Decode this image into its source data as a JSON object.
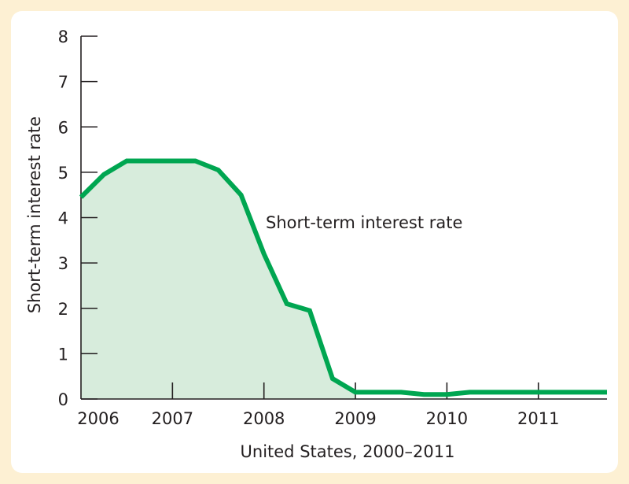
{
  "chart_data": {
    "type": "area",
    "title": "",
    "xlabel": "United States, 2000–2011",
    "ylabel": "Short-term interest rate",
    "annotation": "Short-term interest rate",
    "xlim": [
      2006.0,
      2011.75
    ],
    "ylim": [
      0,
      8
    ],
    "yticks": [
      "0",
      "1",
      "2",
      "3",
      "4",
      "5",
      "6",
      "7",
      "8"
    ],
    "xticks": [
      {
        "value": 2006,
        "label": "2006"
      },
      {
        "value": 2007,
        "label": "2007"
      },
      {
        "value": 2008,
        "label": "2008"
      },
      {
        "value": 2009,
        "label": "2009"
      },
      {
        "value": 2010,
        "label": "2010"
      },
      {
        "value": 2011,
        "label": "2011"
      }
    ],
    "grid": false,
    "series": [
      {
        "line_color": "#00a651",
        "fill_color": "#d7ecdc",
        "points": [
          [
            2006.0,
            4.45
          ],
          [
            2006.25,
            4.95
          ],
          [
            2006.5,
            5.25
          ],
          [
            2006.75,
            5.25
          ],
          [
            2007.0,
            5.25
          ],
          [
            2007.25,
            5.25
          ],
          [
            2007.5,
            5.05
          ],
          [
            2007.75,
            4.5
          ],
          [
            2008.0,
            3.2
          ],
          [
            2008.25,
            2.1
          ],
          [
            2008.5,
            1.95
          ],
          [
            2008.75,
            0.45
          ],
          [
            2009.0,
            0.15
          ],
          [
            2009.25,
            0.15
          ],
          [
            2009.5,
            0.15
          ],
          [
            2009.75,
            0.1
          ],
          [
            2010.0,
            0.1
          ],
          [
            2010.25,
            0.15
          ],
          [
            2010.5,
            0.15
          ],
          [
            2010.75,
            0.15
          ],
          [
            2011.0,
            0.15
          ],
          [
            2011.25,
            0.15
          ],
          [
            2011.5,
            0.15
          ],
          [
            2011.75,
            0.15
          ]
        ]
      }
    ]
  }
}
